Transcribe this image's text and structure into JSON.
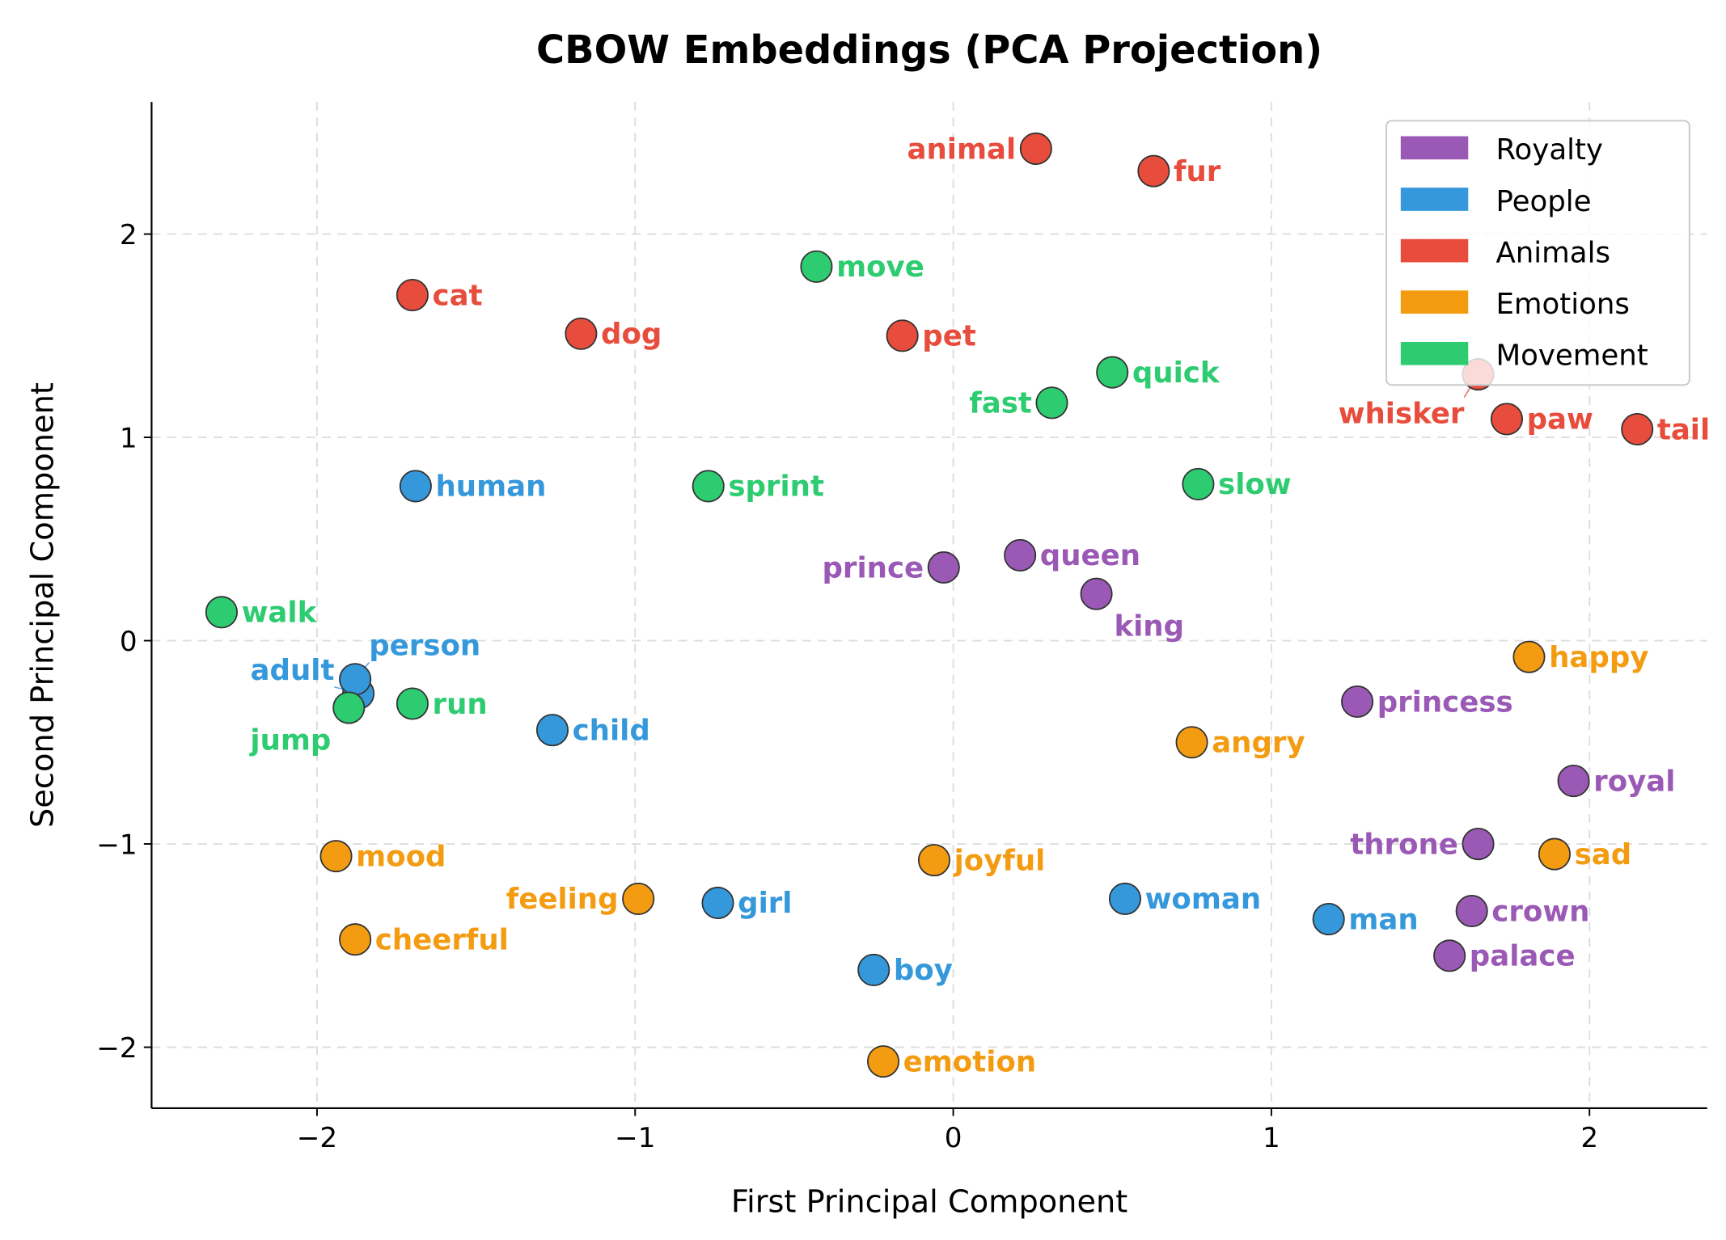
{
  "chart_data": {
    "type": "scatter",
    "title": "CBOW Embeddings (PCA Projection)",
    "xlabel": "First Principal Component",
    "ylabel": "Second Principal Component",
    "xlim": [
      -2.52,
      2.37
    ],
    "ylim": [
      -2.3,
      2.65
    ],
    "xticks": [
      -2,
      -1,
      0,
      1,
      2
    ],
    "yticks": [
      -2,
      -1,
      0,
      1,
      2
    ],
    "xtick_labels": [
      "−2",
      "−1",
      "0",
      "1",
      "2"
    ],
    "ytick_labels": [
      "−2",
      "−1",
      "0",
      "1",
      "2"
    ],
    "grid": true,
    "legend_position": "top-right",
    "series": [
      {
        "name": "Royalty",
        "color": "#9b59b6",
        "points": [
          {
            "label": "prince",
            "x": -0.03,
            "y": 0.36
          },
          {
            "label": "queen",
            "x": 0.21,
            "y": 0.42
          },
          {
            "label": "king",
            "x": 0.45,
            "y": 0.23
          },
          {
            "label": "princess",
            "x": 1.27,
            "y": -0.3
          },
          {
            "label": "royal",
            "x": 1.95,
            "y": -0.69
          },
          {
            "label": "throne",
            "x": 1.65,
            "y": -1.0
          },
          {
            "label": "crown",
            "x": 1.63,
            "y": -1.33
          },
          {
            "label": "palace",
            "x": 1.56,
            "y": -1.55
          }
        ]
      },
      {
        "name": "People",
        "color": "#3498db",
        "points": [
          {
            "label": "human",
            "x": -1.69,
            "y": 0.76
          },
          {
            "label": "adult",
            "x": -1.87,
            "y": -0.26
          },
          {
            "label": "person",
            "x": -1.88,
            "y": -0.19
          },
          {
            "label": "child",
            "x": -1.26,
            "y": -0.44
          },
          {
            "label": "girl",
            "x": -0.74,
            "y": -1.29
          },
          {
            "label": "boy",
            "x": -0.25,
            "y": -1.62
          },
          {
            "label": "woman",
            "x": 0.54,
            "y": -1.27
          },
          {
            "label": "man",
            "x": 1.18,
            "y": -1.37
          }
        ]
      },
      {
        "name": "Animals",
        "color": "#e74c3c",
        "points": [
          {
            "label": "animal",
            "x": 0.26,
            "y": 2.42
          },
          {
            "label": "fur",
            "x": 0.63,
            "y": 2.31
          },
          {
            "label": "cat",
            "x": -1.7,
            "y": 1.7
          },
          {
            "label": "dog",
            "x": -1.17,
            "y": 1.51
          },
          {
            "label": "pet",
            "x": -0.16,
            "y": 1.5
          },
          {
            "label": "whisker",
            "x": 1.65,
            "y": 1.31
          },
          {
            "label": "paw",
            "x": 1.74,
            "y": 1.09
          },
          {
            "label": "tail",
            "x": 2.15,
            "y": 1.04
          }
        ]
      },
      {
        "name": "Emotions",
        "color": "#f39c12",
        "points": [
          {
            "label": "happy",
            "x": 1.81,
            "y": -0.08
          },
          {
            "label": "angry",
            "x": 0.75,
            "y": -0.5
          },
          {
            "label": "sad",
            "x": 1.89,
            "y": -1.05
          },
          {
            "label": "mood",
            "x": -1.94,
            "y": -1.06
          },
          {
            "label": "joyful",
            "x": -0.06,
            "y": -1.08
          },
          {
            "label": "feeling",
            "x": -0.99,
            "y": -1.27
          },
          {
            "label": "cheerful",
            "x": -1.88,
            "y": -1.47
          },
          {
            "label": "emotion",
            "x": -0.22,
            "y": -2.07
          }
        ]
      },
      {
        "name": "Movement",
        "color": "#2ecc71",
        "points": [
          {
            "label": "move",
            "x": -0.43,
            "y": 1.84
          },
          {
            "label": "quick",
            "x": 0.5,
            "y": 1.32
          },
          {
            "label": "fast",
            "x": 0.31,
            "y": 1.17
          },
          {
            "label": "sprint",
            "x": -0.77,
            "y": 0.76
          },
          {
            "label": "slow",
            "x": 0.77,
            "y": 0.77
          },
          {
            "label": "walk",
            "x": -2.3,
            "y": 0.14
          },
          {
            "label": "run",
            "x": -1.7,
            "y": -0.31
          },
          {
            "label": "jump",
            "x": -1.9,
            "y": -0.33
          }
        ]
      }
    ]
  }
}
